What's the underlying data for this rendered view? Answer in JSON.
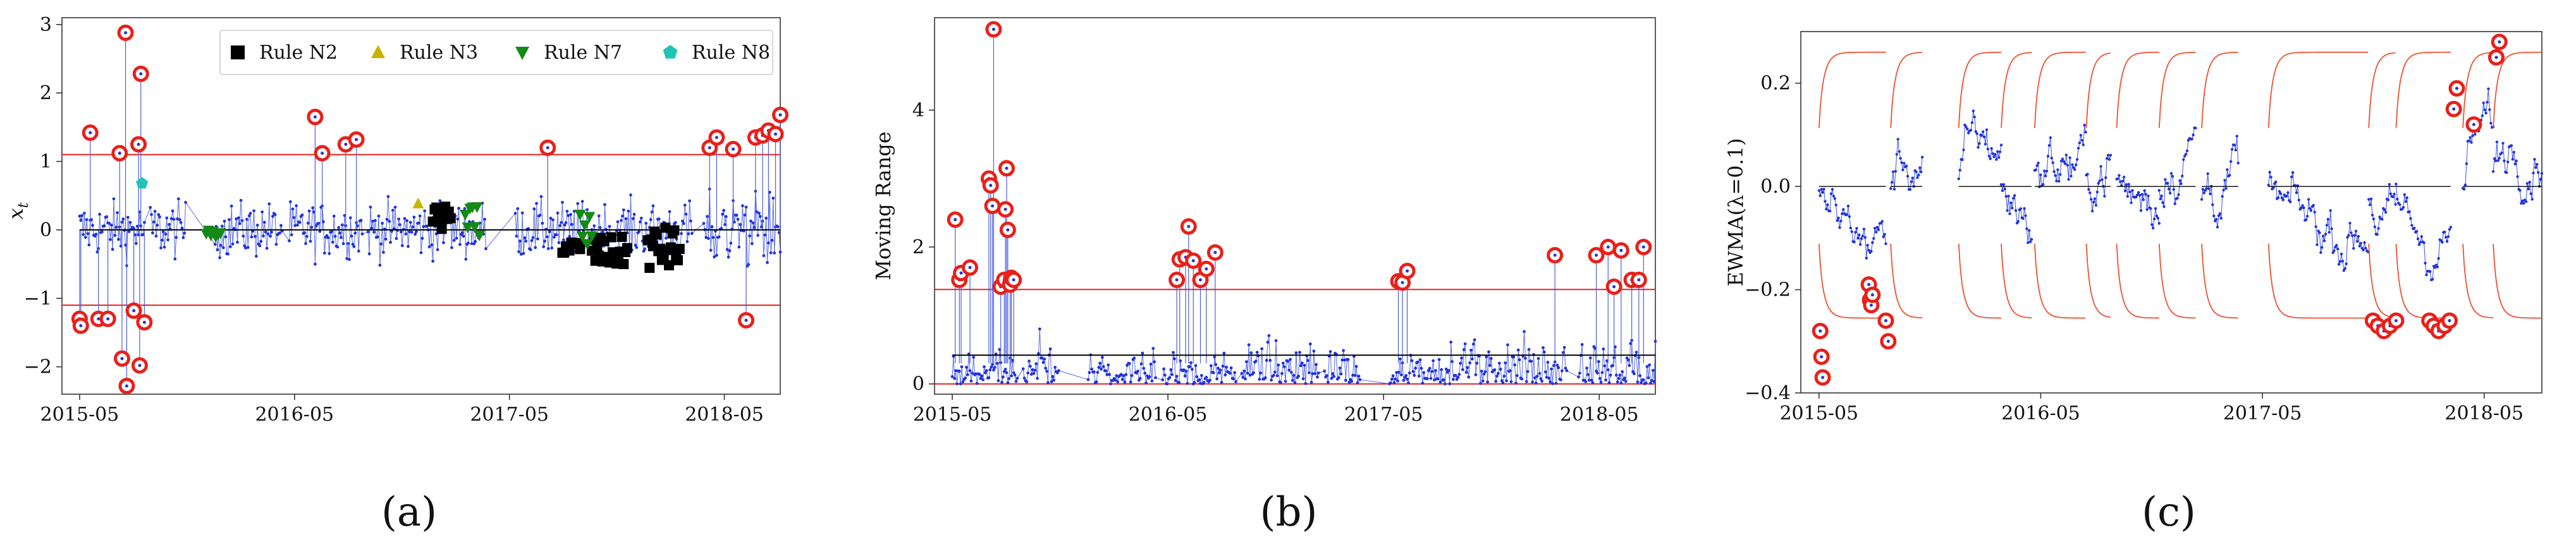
{
  "chart_data": [
    {
      "type": "scatter",
      "panel_label": "(a)",
      "ylabel": "x_t",
      "ylabel_main": "x",
      "ylabel_sub": "t",
      "xlabel": "",
      "x_ticks": [
        "2015-05",
        "2016-05",
        "2017-05",
        "2018-05"
      ],
      "y_ticks": [
        "−2",
        "−1",
        "0",
        "1",
        "2",
        "3"
      ],
      "ylim": [
        -2.4,
        3.1
      ],
      "xlim_days": [
        -30,
        1190
      ],
      "limits": {
        "ucl": 1.1,
        "center": 0,
        "lcl": -1.1
      },
      "legend": {
        "placement": "top",
        "entries": [
          {
            "label": "Rule N2",
            "marker": "square",
            "color": "#000000"
          },
          {
            "label": "Rule N3",
            "marker": "triangle-up",
            "color": "#c8b400"
          },
          {
            "label": "Rule N7",
            "marker": "triangle-down",
            "color": "#138a13"
          },
          {
            "label": "Rule N8",
            "marker": "pentagon",
            "color": "#1fc4b4"
          }
        ]
      },
      "series_note": "daily individual observations (blue dots joined by thin line); flagged points circled in red",
      "flagged_points": [
        {
          "day": 0,
          "value": -1.3
        },
        {
          "day": 2,
          "value": -1.4
        },
        {
          "day": 18,
          "value": 1.42
        },
        {
          "day": 32,
          "value": -1.3
        },
        {
          "day": 48,
          "value": -1.3
        },
        {
          "day": 68,
          "value": 1.12
        },
        {
          "day": 72,
          "value": -1.88
        },
        {
          "day": 78,
          "value": 2.88
        },
        {
          "day": 80,
          "value": -2.28
        },
        {
          "day": 92,
          "value": -1.18
        },
        {
          "day": 100,
          "value": 1.25
        },
        {
          "day": 104,
          "value": 2.28
        },
        {
          "day": 102,
          "value": -1.98
        },
        {
          "day": 110,
          "value": -1.35
        },
        {
          "day": 400,
          "value": 1.65
        },
        {
          "day": 412,
          "value": 1.12
        },
        {
          "day": 452,
          "value": 1.25
        },
        {
          "day": 470,
          "value": 1.32
        },
        {
          "day": 795,
          "value": 1.2
        },
        {
          "day": 1070,
          "value": 1.2
        },
        {
          "day": 1082,
          "value": 1.35
        },
        {
          "day": 1110,
          "value": 1.18
        },
        {
          "day": 1132,
          "value": -1.32
        },
        {
          "day": 1148,
          "value": 1.35
        },
        {
          "day": 1160,
          "value": 1.38
        },
        {
          "day": 1170,
          "value": 1.45
        },
        {
          "day": 1182,
          "value": 1.4
        },
        {
          "day": 1190,
          "value": 1.68
        }
      ],
      "rule_points": {
        "N2": [
          {
            "start": 600,
            "end": 630,
            "low": -0.05,
            "high": 0.35
          },
          {
            "start": 820,
            "end": 850,
            "low": -0.35,
            "high": -0.15
          },
          {
            "start": 870,
            "end": 930,
            "low": -0.55,
            "high": -0.1
          },
          {
            "start": 965,
            "end": 1020,
            "low": -0.6,
            "high": 0.05
          }
        ],
        "N3": [
          {
            "day": 575,
            "value": 0.38
          }
        ],
        "N7": [
          {
            "start": 215,
            "end": 240,
            "low": -0.1,
            "high": 0.0
          },
          {
            "start": 655,
            "end": 680,
            "low": -0.25,
            "high": 0.35
          },
          {
            "start": 850,
            "end": 870,
            "low": -0.2,
            "high": 0.25
          }
        ],
        "N8": [
          {
            "day": 104,
            "value": 2.28
          },
          {
            "day": 106,
            "value": 0.68
          }
        ]
      }
    },
    {
      "type": "scatter",
      "panel_label": "(b)",
      "ylabel": "Moving Range",
      "xlabel": "",
      "x_ticks": [
        "2015-05",
        "2016-05",
        "2017-05",
        "2018-05"
      ],
      "y_ticks": [
        "0",
        "2",
        "4"
      ],
      "ylim": [
        -0.15,
        5.35
      ],
      "xlim_days": [
        -30,
        1190
      ],
      "limits": {
        "ucl": 1.38,
        "center": 0.42,
        "lcl": 0
      },
      "series_note": "moving range of consecutive observations; points above UCL circled in red",
      "flagged_points": [
        {
          "day": 5,
          "value": 2.4
        },
        {
          "day": 12,
          "value": 1.52
        },
        {
          "day": 15,
          "value": 1.62
        },
        {
          "day": 30,
          "value": 1.7
        },
        {
          "day": 62,
          "value": 3.0
        },
        {
          "day": 65,
          "value": 2.9
        },
        {
          "day": 68,
          "value": 2.6
        },
        {
          "day": 70,
          "value": 5.18
        },
        {
          "day": 82,
          "value": 1.42
        },
        {
          "day": 88,
          "value": 1.52
        },
        {
          "day": 90,
          "value": 2.55
        },
        {
          "day": 92,
          "value": 3.15
        },
        {
          "day": 94,
          "value": 2.25
        },
        {
          "day": 98,
          "value": 1.45
        },
        {
          "day": 100,
          "value": 1.55
        },
        {
          "day": 104,
          "value": 1.52
        },
        {
          "day": 380,
          "value": 1.52
        },
        {
          "day": 385,
          "value": 1.82
        },
        {
          "day": 395,
          "value": 1.85
        },
        {
          "day": 400,
          "value": 2.3
        },
        {
          "day": 408,
          "value": 1.8
        },
        {
          "day": 420,
          "value": 1.52
        },
        {
          "day": 430,
          "value": 1.68
        },
        {
          "day": 445,
          "value": 1.92
        },
        {
          "day": 755,
          "value": 1.5
        },
        {
          "day": 762,
          "value": 1.48
        },
        {
          "day": 770,
          "value": 1.65
        },
        {
          "day": 1020,
          "value": 1.88
        },
        {
          "day": 1090,
          "value": 1.88
        },
        {
          "day": 1110,
          "value": 2.0
        },
        {
          "day": 1120,
          "value": 1.42
        },
        {
          "day": 1132,
          "value": 1.95
        },
        {
          "day": 1150,
          "value": 1.52
        },
        {
          "day": 1162,
          "value": 1.52
        },
        {
          "day": 1170,
          "value": 2.0
        }
      ]
    },
    {
      "type": "line",
      "panel_label": "(c)",
      "ylabel": "EWMA(λ=0.1)",
      "xlabel": "",
      "x_ticks": [
        "2015-05",
        "2016-05",
        "2017-05",
        "2018-05"
      ],
      "y_ticks": [
        "−0.4",
        "−0.2",
        "0.0",
        "0.2"
      ],
      "ylim": [
        -0.4,
        0.3
      ],
      "xlim_days": [
        -30,
        1190
      ],
      "limits": {
        "ucl": 0.26,
        "center": 0,
        "lcl": -0.255
      },
      "series_note": "EWMA statistic per segment with time-varying control limits restarting at each segment",
      "flagged_points": [
        {
          "day": 2,
          "value": -0.28
        },
        {
          "day": 4,
          "value": -0.33
        },
        {
          "day": 6,
          "value": -0.37
        },
        {
          "day": 82,
          "value": -0.19
        },
        {
          "day": 84,
          "value": -0.22
        },
        {
          "day": 86,
          "value": -0.23
        },
        {
          "day": 88,
          "value": -0.21
        },
        {
          "day": 110,
          "value": -0.26
        },
        {
          "day": 114,
          "value": -0.3
        },
        {
          "day": 912,
          "value": -0.26
        },
        {
          "day": 920,
          "value": -0.27
        },
        {
          "day": 930,
          "value": -0.28
        },
        {
          "day": 940,
          "value": -0.27
        },
        {
          "day": 950,
          "value": -0.26
        },
        {
          "day": 1005,
          "value": -0.26
        },
        {
          "day": 1012,
          "value": -0.27
        },
        {
          "day": 1020,
          "value": -0.28
        },
        {
          "day": 1030,
          "value": -0.27
        },
        {
          "day": 1038,
          "value": -0.26
        },
        {
          "day": 1045,
          "value": 0.15
        },
        {
          "day": 1050,
          "value": 0.19
        },
        {
          "day": 1078,
          "value": 0.12
        },
        {
          "day": 1115,
          "value": 0.25
        },
        {
          "day": 1120,
          "value": 0.28
        }
      ]
    }
  ]
}
